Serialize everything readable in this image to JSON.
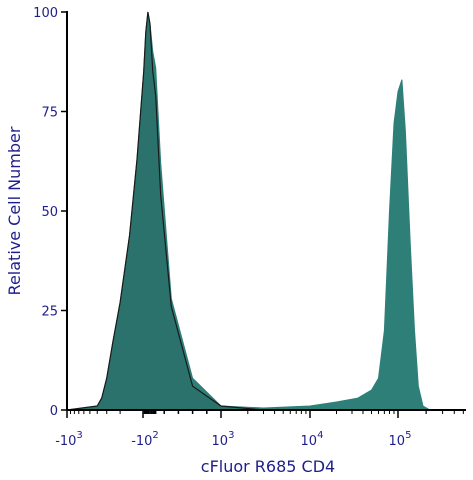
{
  "chart_data": {
    "type": "area",
    "title": "",
    "xlabel": "cFluor R685 CD4",
    "ylabel": "Relative Cell Number",
    "xscale": "biexponential",
    "ylim": [
      0,
      100
    ],
    "y_ticks": [
      "0",
      "25",
      "50",
      "75",
      "100"
    ],
    "x_ticks": [
      {
        "prefix": "-10",
        "exp": "3"
      },
      {
        "prefix": "-10",
        "exp": "2"
      },
      {
        "prefix": "10",
        "exp": "3"
      },
      {
        "prefix": "10",
        "exp": "4"
      },
      {
        "prefix": "10",
        "exp": "5"
      }
    ],
    "colors": {
      "sample_fill": "#2f7f79",
      "control_fill": "#2a6f6a",
      "control_outline": "#1a1a1a",
      "axis_text": "#1f1f8c",
      "axis_line": "#000000"
    },
    "series": [
      {
        "role": "filled-sample",
        "x": [
          -1000,
          -400,
          -350,
          -300,
          -250,
          -200,
          -150,
          -120,
          -90,
          -60,
          -30,
          0,
          40,
          80,
          150,
          300,
          600,
          1000,
          3000,
          10000,
          20000,
          35000,
          50000,
          60000,
          70000,
          80000,
          90000,
          100000,
          110000,
          120000,
          135000,
          150000,
          165000,
          185000,
          220000
        ],
        "y": [
          0,
          1,
          3,
          8,
          17,
          27,
          44,
          63,
          85,
          95,
          100,
          97,
          90,
          86,
          62,
          28,
          8,
          1,
          0.5,
          1,
          2,
          3,
          5,
          8,
          20,
          50,
          72,
          80,
          83,
          70,
          42,
          20,
          6,
          1,
          0
        ]
      },
      {
        "role": "outlined-control",
        "x": [
          -1000,
          -400,
          -350,
          -300,
          -250,
          -200,
          -150,
          -120,
          -90,
          -60,
          -30,
          0,
          40,
          80,
          150,
          300,
          600,
          1000,
          3000
        ],
        "y": [
          0,
          1,
          3,
          8,
          17,
          27,
          44,
          63,
          85,
          95,
          100,
          97,
          85,
          79,
          54,
          26,
          6,
          1,
          0
        ]
      }
    ]
  }
}
